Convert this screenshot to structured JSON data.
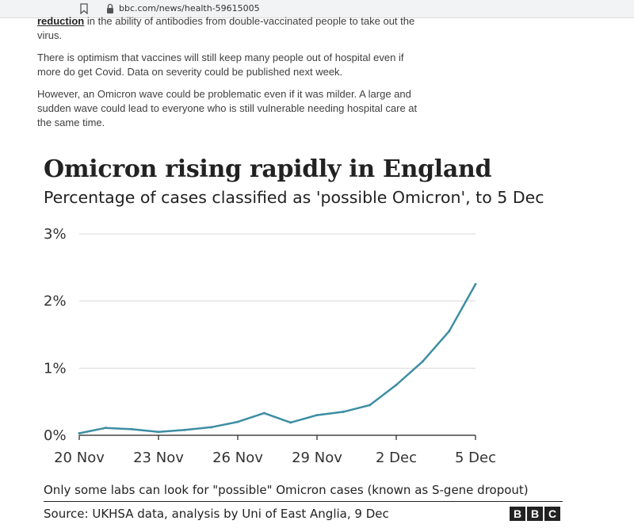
{
  "browser": {
    "url": "bbc.com/news/health-59615005",
    "bookmark_icon": "bookmark-icon",
    "lock_icon": "lock-icon"
  },
  "article": {
    "p1_link": "reduction",
    "p1_rest": " in the ability of antibodies from double-vaccinated people to take out the virus.",
    "p2": "There is optimism that vaccines will still keep many people out of hospital even if more do get Covid. Data on severity could be published next week.",
    "p3": "However, an Omicron wave could be problematic even if it was milder. A large and sudden wave could lead to everyone who is still vulnerable needing hospital care at the same time."
  },
  "chart_data": {
    "type": "line",
    "title": "Omicron rising rapidly in England",
    "subtitle": "Percentage of cases classified as 'possible Omicron', to 5 Dec",
    "x": [
      "20 Nov",
      "21 Nov",
      "22 Nov",
      "23 Nov",
      "24 Nov",
      "25 Nov",
      "26 Nov",
      "27 Nov",
      "28 Nov",
      "29 Nov",
      "30 Nov",
      "1 Dec",
      "2 Dec",
      "3 Dec",
      "4 Dec",
      "5 Dec"
    ],
    "y": [
      0.03,
      0.11,
      0.09,
      0.05,
      0.08,
      0.12,
      0.2,
      0.33,
      0.19,
      0.3,
      0.35,
      0.45,
      0.75,
      1.1,
      1.55,
      2.25
    ],
    "xticks": [
      "20 Nov",
      "23 Nov",
      "26 Nov",
      "29 Nov",
      "2 Dec",
      "5 Dec"
    ],
    "yticks": [
      "0%",
      "1%",
      "2%",
      "3%"
    ],
    "ylim": [
      0,
      3
    ],
    "grid": true,
    "line_color": "#3d8ea3",
    "note": "Only some labs can look for \"possible\" Omicron cases (known as S-gene dropout)",
    "source": "Source: UKHSA data, analysis by Uni of East Anglia, 9 Dec"
  },
  "logo": {
    "letters": [
      "B",
      "B",
      "C"
    ]
  }
}
